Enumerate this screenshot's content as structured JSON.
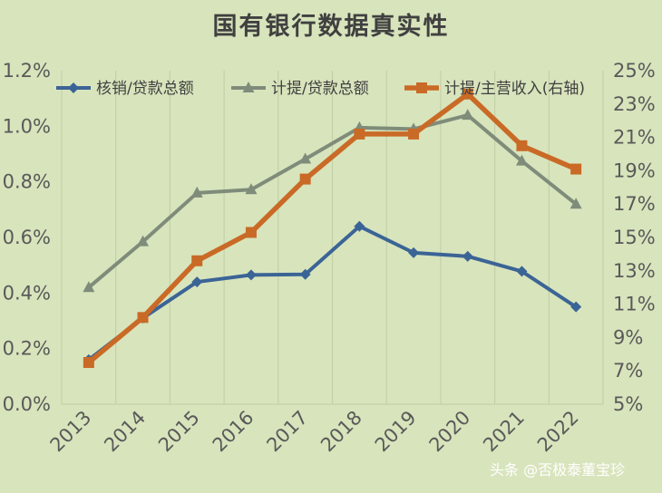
{
  "chart_data": {
    "type": "line",
    "title": "国有银行数据真实性",
    "categories": [
      "2013",
      "2014",
      "2015",
      "2016",
      "2017",
      "2018",
      "2019",
      "2020",
      "2021",
      "2022"
    ],
    "left_axis": {
      "ylim": [
        0,
        1.2
      ],
      "ticks": [
        "0.0%",
        "0.2%",
        "0.4%",
        "0.6%",
        "0.8%",
        "1.0%",
        "1.2%"
      ]
    },
    "right_axis": {
      "ylim": [
        5,
        25
      ],
      "ticks": [
        "5%",
        "7%",
        "9%",
        "11%",
        "13%",
        "15%",
        "17%",
        "19%",
        "21%",
        "23%",
        "25%"
      ]
    },
    "series": [
      {
        "name": "核销/贷款总额",
        "axis": "left",
        "color": "#3b6496",
        "marker": "diamond",
        "values": [
          0.16,
          0.31,
          0.44,
          0.465,
          0.467,
          0.64,
          0.545,
          0.532,
          0.478,
          0.35
        ]
      },
      {
        "name": "计提/贷款总额",
        "axis": "left",
        "color": "#7f8c7a",
        "marker": "triangle",
        "values": [
          0.42,
          0.585,
          0.76,
          0.772,
          0.882,
          0.995,
          0.99,
          1.04,
          0.875,
          0.72
        ]
      },
      {
        "name": "计提/主营收入(右轴)",
        "axis": "right",
        "color": "#c96a26",
        "marker": "square",
        "values": [
          7.5,
          10.2,
          13.6,
          15.3,
          18.5,
          21.2,
          21.2,
          23.6,
          20.5,
          19.1
        ]
      }
    ],
    "legend_position": "top",
    "grid": "vertical"
  },
  "watermark": "头条 @否极泰董宝珍"
}
